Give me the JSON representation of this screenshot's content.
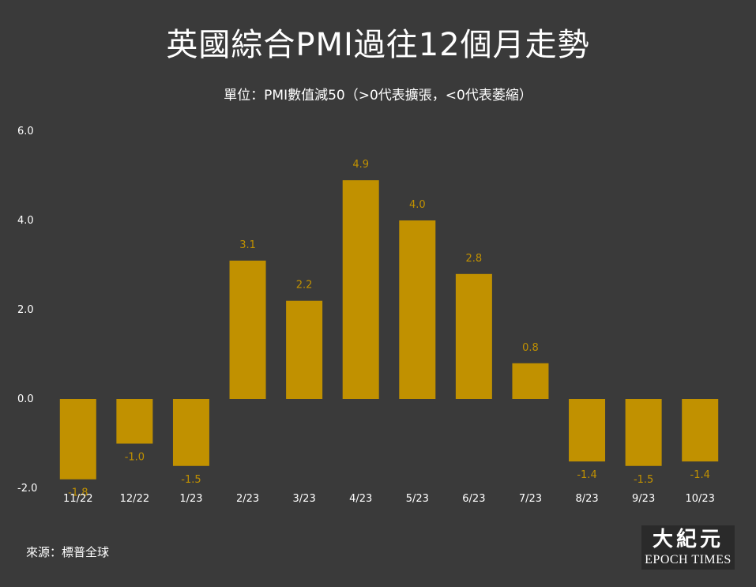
{
  "header": {
    "title": "英國綜合PMI過往12個月走勢",
    "subtitle": "單位：PMI數值減50（>0代表擴張，<0代表萎縮）"
  },
  "footer": {
    "source": "來源：標普全球"
  },
  "logo": {
    "chinese": "大紀元",
    "english": "EPOCH TIMES"
  },
  "colors": {
    "background": "#3a3a3a",
    "bar": "#c19100",
    "bar_label": "#c19100",
    "text": "#ffffff"
  },
  "chart_data": {
    "type": "bar",
    "title": "英國綜合PMI過往12個月走勢",
    "subtitle": "單位：PMI數值減50（>0代表擴張，<0代表萎縮）",
    "categories": [
      "11/22",
      "12/22",
      "1/23",
      "2/23",
      "3/23",
      "4/23",
      "5/23",
      "6/23",
      "7/23",
      "8/23",
      "9/23",
      "10/23"
    ],
    "values": [
      -1.8,
      -1.0,
      -1.5,
      3.1,
      2.2,
      4.9,
      4.0,
      2.8,
      0.8,
      -1.4,
      -1.5,
      -1.4
    ],
    "value_labels": [
      "-1.8",
      "-1.0",
      "-1.5",
      "3.1",
      "2.2",
      "4.9",
      "4.0",
      "2.8",
      "0.8",
      "-1.4",
      "-1.5",
      "-1.4"
    ],
    "y_ticks": [
      -2,
      0,
      2,
      4,
      6
    ],
    "y_tick_labels": [
      "-2.0",
      "0.0",
      "2.0",
      "4.0",
      "6.0"
    ],
    "ylim": [
      -2,
      6
    ],
    "xlabel": "",
    "ylabel": "",
    "grid": false,
    "legend": "none"
  }
}
